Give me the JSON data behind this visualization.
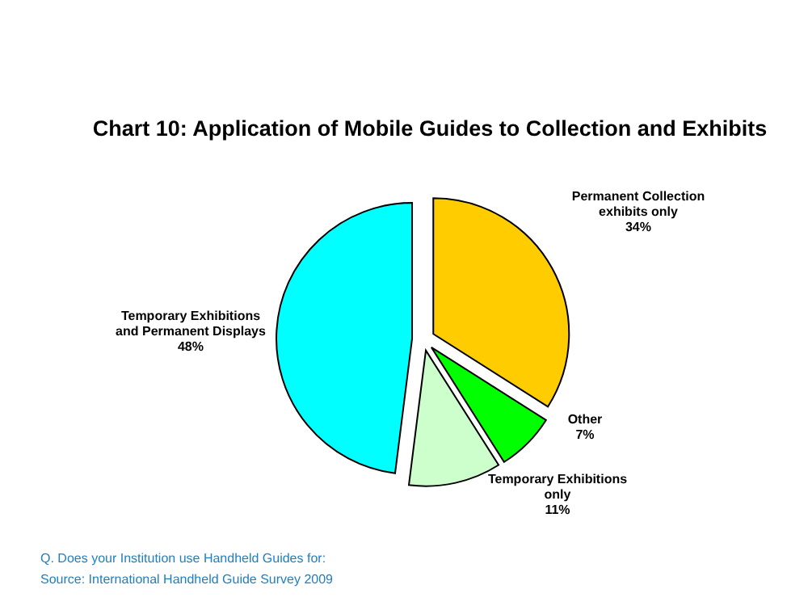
{
  "chart_data": {
    "type": "pie",
    "title": "Chart 10: Application of Mobile Guides to Collection and Exhibits",
    "categories": [
      "Permanent Collection exhibits only",
      "Other",
      "Temporary Exhibitions only",
      "Temporary Exhibitions and Permanent Displays"
    ],
    "values": [
      34,
      7,
      11,
      48
    ],
    "colors": [
      "#ffcc00",
      "#00ff00",
      "#ccffcc",
      "#00ffff"
    ],
    "value_labels": [
      "34%",
      "7%",
      "11%",
      "48%"
    ],
    "annotations": [
      "Q. Does your Institution use Handheld Guides for:",
      "Source: International Handheld Guide Survey 2009"
    ]
  }
}
